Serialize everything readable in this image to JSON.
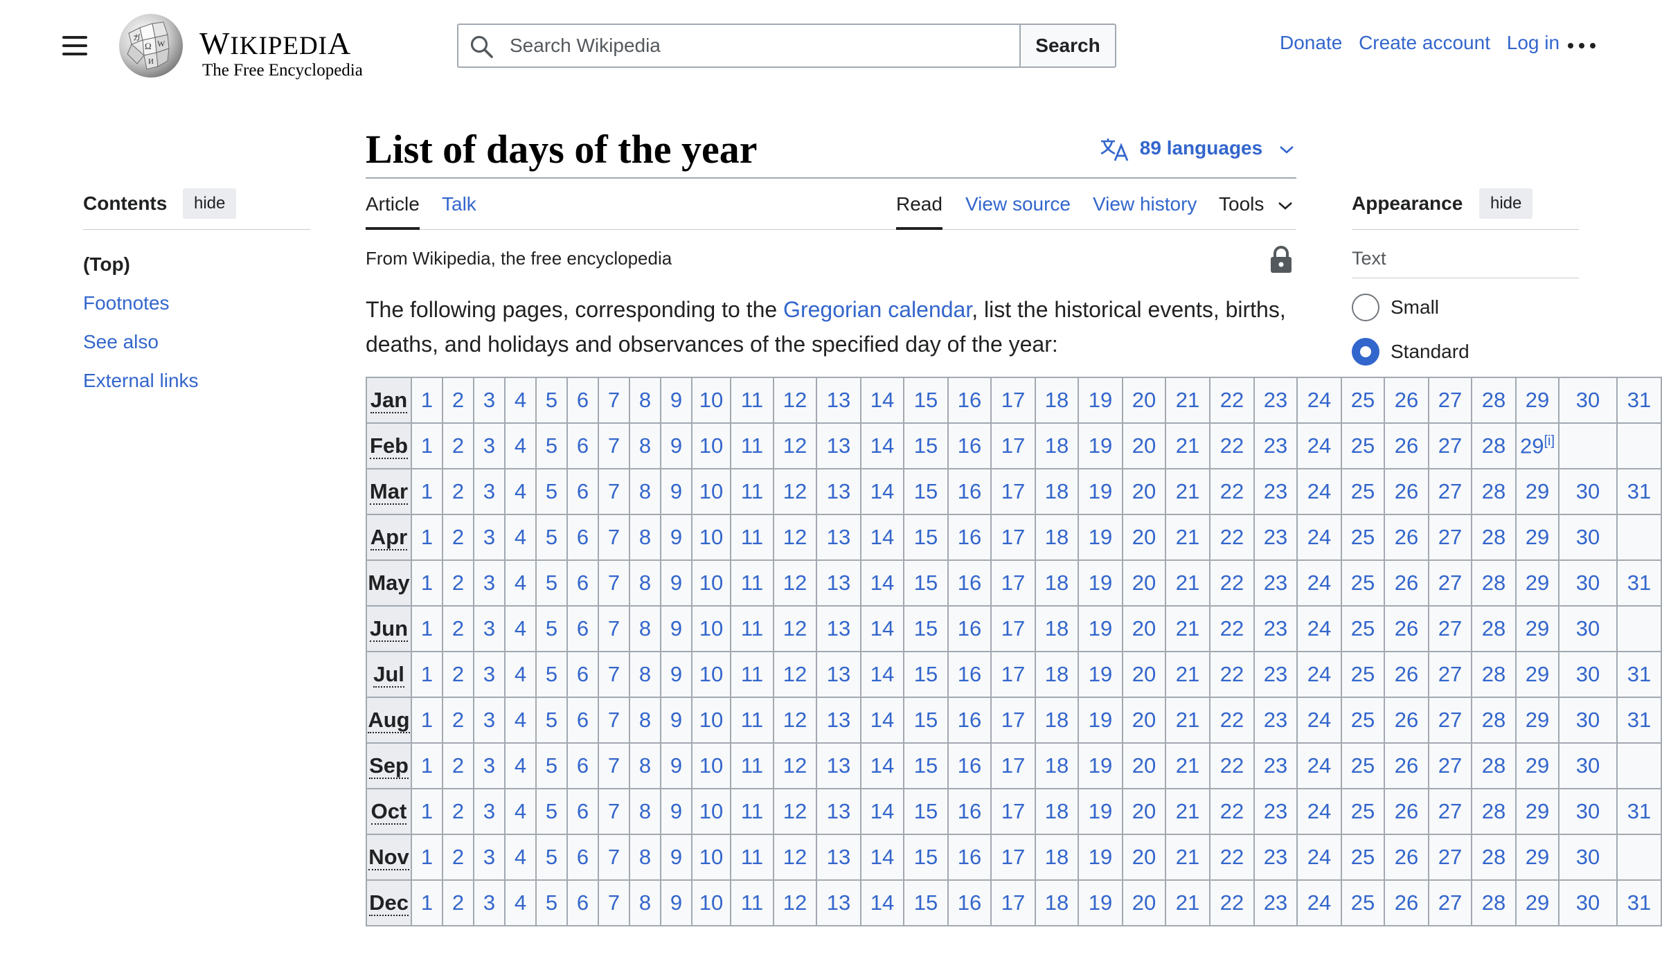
{
  "header": {
    "wordmark_big": "W",
    "wordmark_rest": "IKIPEDI",
    "wordmark_end": "A",
    "tagline": "The Free Encyclopedia",
    "search_placeholder": "Search Wikipedia",
    "search_button": "Search",
    "user_links": [
      "Donate",
      "Create account",
      "Log in"
    ]
  },
  "toc": {
    "title": "Contents",
    "hide_label": "hide",
    "items": [
      "(Top)",
      "Footnotes",
      "See also",
      "External links"
    ]
  },
  "page": {
    "title": "List of days of the year",
    "languages": "89 languages",
    "tabs": {
      "article": "Article",
      "talk": "Talk",
      "read": "Read",
      "view_source": "View source",
      "view_history": "View history",
      "tools": "Tools"
    },
    "from_line": "From Wikipedia, the free encyclopedia",
    "intro_before": "The following pages, corresponding to the ",
    "intro_link": "Gregorian calendar",
    "intro_after": ", list the historical events, births, deaths, and holidays and observances of the specified day of the year:"
  },
  "day_table": {
    "feb_footnote": "[i]",
    "months": [
      {
        "name": "Jan",
        "days": 31
      },
      {
        "name": "Feb",
        "days": 29
      },
      {
        "name": "Mar",
        "days": 31
      },
      {
        "name": "Apr",
        "days": 30
      },
      {
        "name": "May",
        "days": 31
      },
      {
        "name": "Jun",
        "days": 30
      },
      {
        "name": "Jul",
        "days": 31
      },
      {
        "name": "Aug",
        "days": 31
      },
      {
        "name": "Sep",
        "days": 30
      },
      {
        "name": "Oct",
        "days": 31
      },
      {
        "name": "Nov",
        "days": 30
      },
      {
        "name": "Dec",
        "days": 31
      }
    ]
  },
  "appearance": {
    "title": "Appearance",
    "hide_label": "hide",
    "text_label": "Text",
    "options": [
      {
        "label": "Small",
        "checked": false
      },
      {
        "label": "Standard",
        "checked": true
      }
    ]
  },
  "colors": {
    "link": "#3366cc",
    "text": "#202122",
    "border": "#a2a9b1",
    "header_cell": "#eaecf0",
    "cell": "#f8f9fa"
  }
}
